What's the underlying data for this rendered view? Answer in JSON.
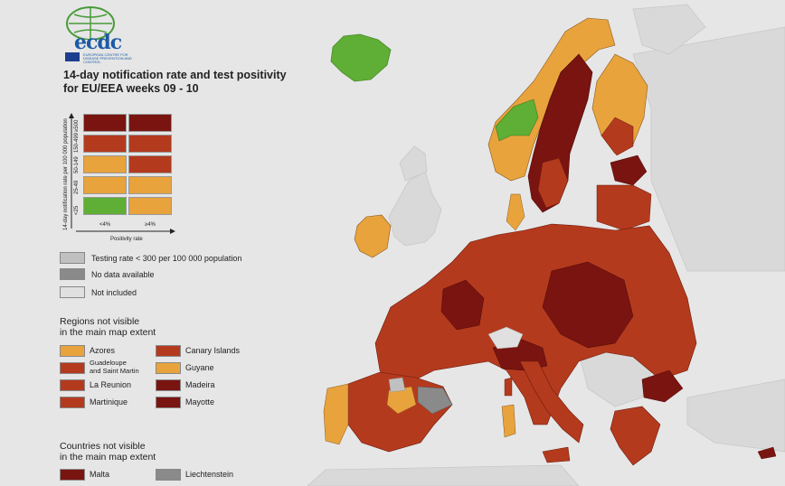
{
  "map": {
    "title_line1": "14-day notification rate and test positivity",
    "title_line2": "for EU/EEA weeks 09 - 10",
    "logo_text": "ecdc",
    "logo_subtext": "EUROPEAN CENTRE FOR DISEASE PREVENTION AND CONTROL",
    "colors": {
      "dark_red": "#7a1410",
      "red": "#b43a1e",
      "orange": "#e8a33c",
      "green": "#5fae35",
      "grey_light": "#c0c0c0",
      "grey_dark": "#8a8a8a",
      "not_included": "#e0e0e0",
      "sea": "#e6e6e6"
    }
  },
  "matrix": {
    "y_axis_title": "14-day notification rate per 100 000 population",
    "x_axis_title": "Positivity rate",
    "rows": [
      "≥500",
      "150-499",
      "50-149",
      "25-49",
      "<25"
    ],
    "cols": [
      "<4%",
      "≥4%"
    ],
    "cell_colors": [
      [
        "#7a1410",
        "#7a1410"
      ],
      [
        "#b43a1e",
        "#b43a1e"
      ],
      [
        "#e8a33c",
        "#b43a1e"
      ],
      [
        "#e8a33c",
        "#e8a33c"
      ],
      [
        "#5fae35",
        "#e8a33c"
      ]
    ]
  },
  "legend": {
    "testing_rate": "Testing rate < 300 per 100 000 population",
    "no_data": "No data available",
    "not_included": "Not included",
    "regions_title_1": "Regions not visible",
    "regions_title_2": "in the main map extent",
    "regions": [
      {
        "label": "Azores",
        "color": "#e8a33c"
      },
      {
        "label": "Canary Islands",
        "color": "#b43a1e"
      },
      {
        "label": "Guadeloupe\nand Saint Martin",
        "color": "#b43a1e"
      },
      {
        "label": "Guyane",
        "color": "#e8a33c"
      },
      {
        "label": "La Reunion",
        "color": "#b43a1e"
      },
      {
        "label": "Madeira",
        "color": "#7a1410"
      },
      {
        "label": "Martinique",
        "color": "#b43a1e"
      },
      {
        "label": "Mayotte",
        "color": "#7a1410"
      }
    ],
    "countries_title_1": "Countries not visible",
    "countries_title_2": "in the main map extent",
    "countries": [
      {
        "label": "Malta",
        "color": "#7a1410"
      },
      {
        "label": "Liechtenstein",
        "color": "#8a8a8a"
      }
    ]
  }
}
